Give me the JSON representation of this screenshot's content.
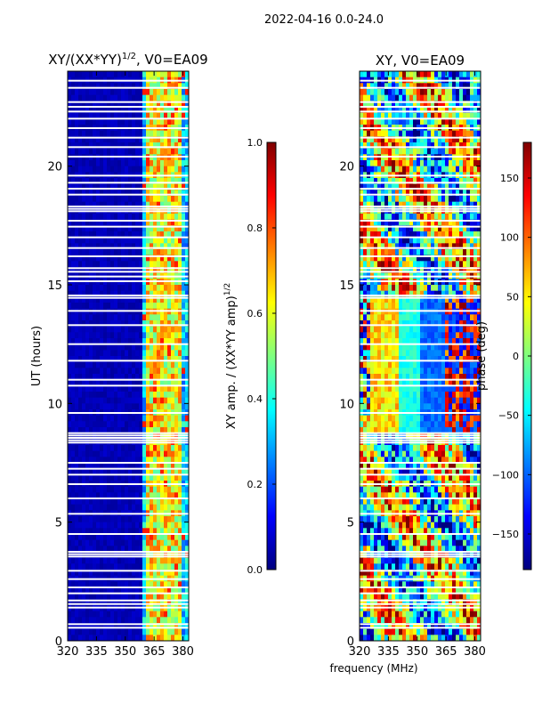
{
  "suptitle": "2022-04-16 0.0-24.0",
  "xlabel_shared": "frequency (MHz)",
  "colormap": {
    "name": "jet",
    "stops": [
      "#00007f",
      "#0000ff",
      "#007fff",
      "#00ffff",
      "#7fff7f",
      "#ffff00",
      "#ff7f00",
      "#ff0000",
      "#7f0000"
    ]
  },
  "chart_data": [
    {
      "type": "heatmap",
      "title": "XY/(XX*YY)",
      "title_exponent": "1/2",
      "title_suffix": ", V0=EA09",
      "xlabel": "",
      "ylabel": "UT (hours)",
      "xlim": [
        320,
        383
      ],
      "ylim": [
        0,
        24
      ],
      "x_ticks": [
        320,
        335,
        350,
        365,
        380
      ],
      "y_ticks": [
        0,
        5,
        10,
        15,
        20
      ],
      "colorbar": {
        "label": "XY amp. / (XX*YY amp)",
        "label_exponent": "1/2",
        "range": [
          0.0,
          1.0
        ],
        "ticks": [
          "0.0",
          "0.2",
          "0.4",
          "0.6",
          "0.8",
          "1.0"
        ],
        "tick_values": [
          0.0,
          0.2,
          0.4,
          0.6,
          0.8,
          1.0
        ]
      },
      "band_columns_MHz": [
        361,
        363,
        365,
        367,
        369,
        371,
        373,
        375,
        377,
        379
      ],
      "low_value_region": "320-360 MHz near 0.0"
    },
    {
      "type": "heatmap",
      "title": "XY, V0=EA09",
      "xlabel": "frequency (MHz)",
      "ylabel": "",
      "xlim": [
        320,
        383
      ],
      "ylim": [
        0,
        24
      ],
      "x_ticks": [
        320,
        335,
        350,
        365,
        380
      ],
      "y_ticks": [
        0,
        5,
        10,
        15,
        20
      ],
      "colorbar": {
        "label": "phase (deg)",
        "range": [
          -180,
          180
        ],
        "ticks": [
          "−150",
          "−100",
          "−50",
          "0",
          "50",
          "100",
          "150"
        ],
        "tick_values": [
          -150,
          -100,
          -50,
          0,
          50,
          100,
          150
        ]
      }
    }
  ],
  "data_gaps_UT_hours": [
    0.55,
    0.7,
    1.4,
    1.55,
    1.7,
    2.0,
    2.25,
    2.6,
    2.95,
    3.55,
    3.65,
    3.75,
    4.5,
    5.35,
    6.0,
    6.6,
    7.0,
    7.25,
    7.5,
    8.35,
    8.45,
    8.55,
    8.65,
    8.75,
    9.6,
    10.75,
    11.0,
    11.8,
    12.5,
    13.3,
    13.9,
    14.45,
    14.55,
    15.15,
    15.35,
    15.55,
    15.7,
    16.2,
    16.55,
    17.0,
    17.45,
    17.7,
    18.1,
    18.2,
    18.3,
    18.8,
    19.05,
    19.3,
    19.6,
    20.4,
    20.8,
    21.2,
    21.6,
    22.0,
    22.3,
    22.5,
    22.7,
    23.3,
    23.6
  ]
}
